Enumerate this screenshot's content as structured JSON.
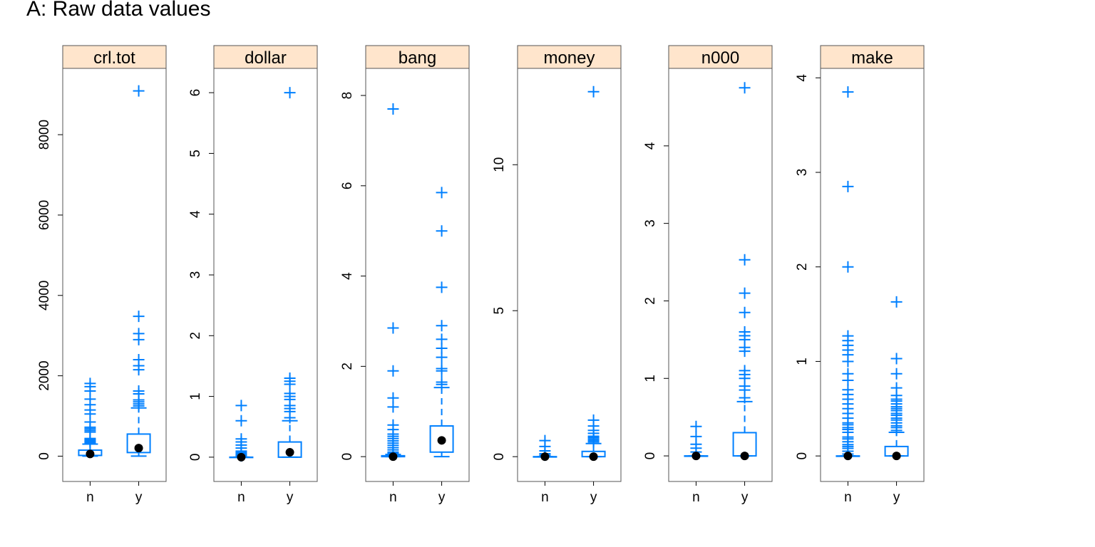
{
  "figure": {
    "title": "A: Raw data values"
  },
  "colors": {
    "box": "#0080ff",
    "outlier": "#0080ff",
    "median": "#000000",
    "strip": "#ffe5cc",
    "frame": "#555555"
  },
  "chart_data": [
    {
      "type": "box",
      "title": "crl.tot",
      "categories": [
        "n",
        "y"
      ],
      "ylim": [
        -630,
        9650
      ],
      "yticks": [
        0,
        2000,
        4000,
        6000,
        8000
      ],
      "yticklabels": [
        "0",
        "2000",
        "4000",
        "6000",
        "8000"
      ],
      "boxes": [
        {
          "category": "n",
          "min": 1,
          "q1": 18,
          "median": 55,
          "q3": 150,
          "max": 300,
          "outliers": [
            320,
            350,
            370,
            390,
            420,
            440,
            600,
            640,
            680,
            720,
            850,
            1050,
            1150,
            1280,
            1420,
            1620,
            1730,
            1810
          ]
        },
        {
          "category": "y",
          "min": 1,
          "q1": 90,
          "median": 200,
          "q3": 550,
          "max": 1200,
          "outliers": [
            1250,
            1300,
            1350,
            1400,
            1550,
            1620,
            2150,
            2250,
            2400,
            2900,
            3050,
            3480,
            9090
          ]
        }
      ]
    },
    {
      "type": "box",
      "title": "dollar",
      "categories": [
        "n",
        "y"
      ],
      "ylim": [
        -0.4,
        6.4
      ],
      "yticks": [
        0,
        1,
        2,
        3,
        4,
        5,
        6
      ],
      "yticklabels": [
        "0",
        "1",
        "2",
        "3",
        "4",
        "5",
        "6"
      ],
      "boxes": [
        {
          "category": "n",
          "min": 0,
          "q1": 0,
          "median": 0,
          "q3": 0,
          "max": 0,
          "outliers": [
            0.02,
            0.04,
            0.06,
            0.08,
            0.1,
            0.15,
            0.2,
            0.25,
            0.3,
            0.6,
            0.85
          ]
        },
        {
          "category": "y",
          "min": 0,
          "q1": 0,
          "median": 0.08,
          "q3": 0.25,
          "max": 0.6,
          "outliers": [
            0.65,
            0.75,
            0.8,
            0.85,
            0.95,
            1.0,
            1.05,
            1.2,
            1.25,
            1.3,
            6.0
          ]
        }
      ]
    },
    {
      "type": "box",
      "title": "bang",
      "categories": [
        "n",
        "y"
      ],
      "ylim": [
        -0.55,
        8.6
      ],
      "yticks": [
        0,
        2,
        4,
        6,
        8
      ],
      "yticklabels": [
        "0",
        "2",
        "4",
        "6",
        "8"
      ],
      "boxes": [
        {
          "category": "n",
          "min": 0,
          "q1": 0,
          "median": 0,
          "q3": 0.02,
          "max": 0.05,
          "outliers": [
            0.06,
            0.08,
            0.1,
            0.15,
            0.2,
            0.25,
            0.3,
            0.35,
            0.4,
            0.45,
            0.5,
            0.6,
            0.7,
            1.1,
            1.3,
            1.9,
            2.85,
            7.7
          ]
        },
        {
          "category": "y",
          "min": 0,
          "q1": 0.1,
          "median": 0.36,
          "q3": 0.68,
          "max": 1.53,
          "outliers": [
            1.6,
            1.65,
            1.9,
            1.95,
            2.2,
            2.4,
            2.6,
            2.9,
            3.75,
            5.0,
            5.85
          ]
        }
      ]
    },
    {
      "type": "box",
      "title": "money",
      "categories": [
        "n",
        "y"
      ],
      "ylim": [
        -0.85,
        13.3
      ],
      "yticks": [
        0,
        5,
        10
      ],
      "yticklabels": [
        "0",
        "5",
        "10"
      ],
      "boxes": [
        {
          "category": "n",
          "min": 0,
          "q1": 0,
          "median": 0,
          "q3": 0,
          "max": 0,
          "outliers": [
            0.05,
            0.1,
            0.2,
            0.35,
            0.55
          ]
        },
        {
          "category": "y",
          "min": 0,
          "q1": 0,
          "median": 0,
          "q3": 0.18,
          "max": 0.45,
          "outliers": [
            0.5,
            0.55,
            0.6,
            0.65,
            0.7,
            0.8,
            0.9,
            1.05,
            1.25,
            12.5
          ]
        }
      ]
    },
    {
      "type": "box",
      "title": "n000",
      "categories": [
        "n",
        "y"
      ],
      "ylim": [
        -0.33,
        5.0
      ],
      "yticks": [
        0,
        1,
        2,
        3,
        4
      ],
      "yticklabels": [
        "0",
        "1",
        "2",
        "3",
        "4"
      ],
      "boxes": [
        {
          "category": "n",
          "min": 0,
          "q1": 0,
          "median": 0,
          "q3": 0,
          "max": 0,
          "outliers": [
            0.05,
            0.1,
            0.15,
            0.25,
            0.38
          ]
        },
        {
          "category": "y",
          "min": 0,
          "q1": 0,
          "median": 0,
          "q3": 0.3,
          "max": 0.7,
          "outliers": [
            0.75,
            0.85,
            0.9,
            1.0,
            1.05,
            1.1,
            1.35,
            1.4,
            1.5,
            1.55,
            1.6,
            1.85,
            2.1,
            2.53,
            4.75
          ]
        }
      ]
    },
    {
      "type": "box",
      "title": "make",
      "categories": [
        "n",
        "y"
      ],
      "ylim": [
        -0.27,
        4.1
      ],
      "yticks": [
        0,
        1,
        2,
        3,
        4
      ],
      "yticklabels": [
        "0",
        "1",
        "2",
        "3",
        "4"
      ],
      "boxes": [
        {
          "category": "n",
          "min": 0,
          "q1": 0,
          "median": 0,
          "q3": 0,
          "max": 0,
          "outliers": [
            0.02,
            0.05,
            0.08,
            0.1,
            0.12,
            0.15,
            0.18,
            0.2,
            0.25,
            0.28,
            0.3,
            0.33,
            0.35,
            0.4,
            0.45,
            0.5,
            0.55,
            0.6,
            0.65,
            0.7,
            0.8,
            0.87,
            1.0,
            1.07,
            1.12,
            1.17,
            1.22,
            1.27,
            2.0,
            2.85,
            3.85
          ]
        },
        {
          "category": "y",
          "min": 0,
          "q1": 0,
          "median": 0,
          "q3": 0.1,
          "max": 0.25,
          "outliers": [
            0.27,
            0.3,
            0.32,
            0.35,
            0.38,
            0.4,
            0.43,
            0.45,
            0.48,
            0.5,
            0.52,
            0.55,
            0.58,
            0.6,
            0.64,
            0.72,
            0.87,
            1.03,
            1.63
          ]
        }
      ]
    }
  ]
}
